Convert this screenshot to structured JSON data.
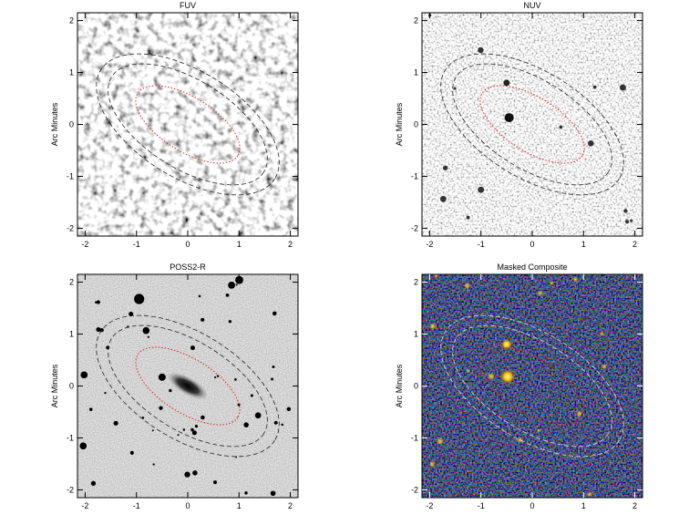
{
  "chart_data": [
    {
      "type": "image",
      "title": "FUV",
      "ylabel": "Arc Minutes",
      "xlim": [
        -2.15,
        2.15
      ],
      "ylim": [
        -2.15,
        2.15
      ],
      "xticks": [
        -2,
        -1,
        0,
        1,
        2
      ],
      "yticks": [
        -2,
        -1,
        0,
        1,
        2
      ]
    },
    {
      "type": "image",
      "title": "NUV",
      "ylabel": "Arc Minutes",
      "xlim": [
        -2.15,
        2.15
      ],
      "ylim": [
        -2.15,
        2.15
      ],
      "xticks": [
        -2,
        -1,
        0,
        1,
        2
      ],
      "yticks": [
        -2,
        -1,
        0,
        1,
        2
      ]
    },
    {
      "type": "image",
      "title": "POSS2-R",
      "ylabel": "Arc Minutes",
      "xlim": [
        -2.15,
        2.15
      ],
      "ylim": [
        -2.15,
        2.15
      ],
      "xticks": [
        -2,
        -1,
        0,
        1,
        2
      ],
      "yticks": [
        -2,
        -1,
        0,
        1,
        2
      ]
    },
    {
      "type": "image",
      "title": "Masked Composite",
      "ylabel": "Arc Minutes",
      "xlim": [
        -2.15,
        2.15
      ],
      "ylim": [
        -2.15,
        2.15
      ],
      "xticks": [
        -2,
        -1,
        0,
        1,
        2
      ],
      "yticks": [
        -2,
        -1,
        0,
        1,
        2
      ]
    }
  ]
}
